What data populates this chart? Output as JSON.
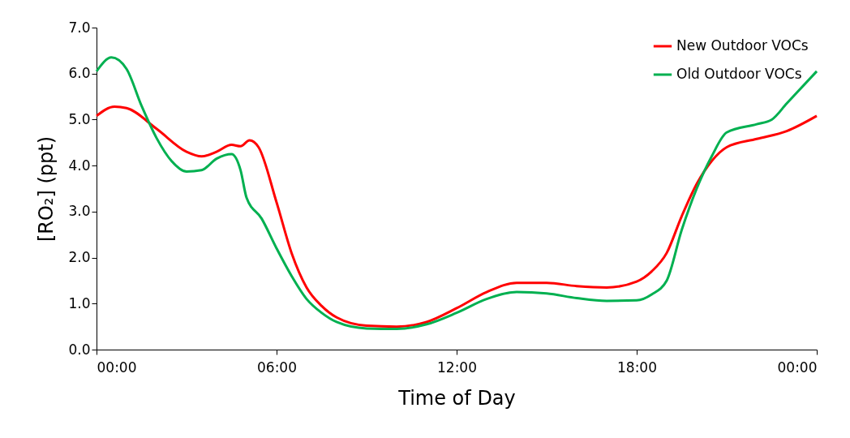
{
  "chart_data": {
    "type": "line",
    "xlabel": "Time of Day",
    "ylabel": "[RO₂] (ppt)",
    "xlim": [
      0,
      24
    ],
    "ylim": [
      0,
      7
    ],
    "xticks": [
      {
        "value": 0,
        "label": "00:00"
      },
      {
        "value": 6,
        "label": "06:00"
      },
      {
        "value": 12,
        "label": "12:00"
      },
      {
        "value": 18,
        "label": "18:00"
      },
      {
        "value": 24,
        "label": "00:00"
      }
    ],
    "yticks": [
      {
        "value": 0,
        "label": "0.0"
      },
      {
        "value": 1,
        "label": "1.0"
      },
      {
        "value": 2,
        "label": "2.0"
      },
      {
        "value": 3,
        "label": "3.0"
      },
      {
        "value": 4,
        "label": "4.0"
      },
      {
        "value": 5,
        "label": "5.0"
      },
      {
        "value": 6,
        "label": "6.0"
      },
      {
        "value": 7,
        "label": "7.0"
      }
    ],
    "grid": false,
    "legend": "top right",
    "marker": "none",
    "line_style": "solid",
    "series": [
      {
        "name": "New Outdoor VOCs",
        "color": "#ff0000",
        "x": [
          0,
          0.6,
          1,
          2,
          3,
          3.5,
          4,
          4.5,
          4.8,
          5.1,
          5.4,
          6,
          6.5,
          7,
          7.5,
          8,
          9,
          10,
          11,
          12,
          13,
          14,
          15,
          16,
          17,
          18,
          18.5,
          19,
          19.5,
          20,
          20.5,
          21,
          22,
          23,
          24
        ],
        "values": [
          5.08,
          5.28,
          5.25,
          4.8,
          4.3,
          4.2,
          4.3,
          4.45,
          4.42,
          4.55,
          4.4,
          3.2,
          2.1,
          1.35,
          0.95,
          0.7,
          0.52,
          0.5,
          0.6,
          0.9,
          1.25,
          1.45,
          1.45,
          1.38,
          1.35,
          1.48,
          1.7,
          2.1,
          2.9,
          3.6,
          4.1,
          4.4,
          4.58,
          4.75,
          5.08
        ]
      },
      {
        "name": "Old Outdoor VOCs",
        "color": "#00b050",
        "x": [
          0,
          0.5,
          1,
          1.5,
          2,
          2.5,
          3,
          3.5,
          4,
          4.5,
          4.8,
          5,
          5.5,
          6,
          6.5,
          7,
          7.5,
          8,
          9,
          10,
          11,
          12,
          13,
          14,
          15,
          16,
          17,
          18,
          18.5,
          19,
          19.5,
          20,
          20.5,
          21,
          22,
          22.5,
          23,
          24
        ],
        "values": [
          6.05,
          6.35,
          6.1,
          5.3,
          4.6,
          4.1,
          3.87,
          3.9,
          4.15,
          4.25,
          3.9,
          3.3,
          2.85,
          2.2,
          1.6,
          1.1,
          0.8,
          0.6,
          0.46,
          0.45,
          0.55,
          0.8,
          1.1,
          1.25,
          1.22,
          1.12,
          1.06,
          1.07,
          1.2,
          1.5,
          2.6,
          3.5,
          4.2,
          4.72,
          4.9,
          5.0,
          5.35,
          6.05
        ]
      }
    ]
  }
}
